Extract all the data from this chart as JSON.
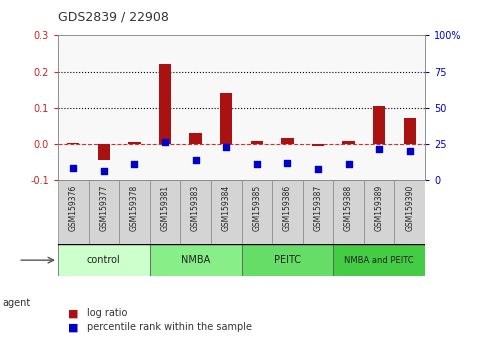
{
  "title": "GDS2839 / 22908",
  "categories": [
    "GSM159376",
    "GSM159377",
    "GSM159378",
    "GSM159381",
    "GSM159383",
    "GSM159384",
    "GSM159385",
    "GSM159386",
    "GSM159387",
    "GSM159388",
    "GSM159389",
    "GSM159390"
  ],
  "log_ratio": [
    0.003,
    -0.045,
    0.005,
    0.22,
    0.03,
    0.14,
    0.01,
    0.018,
    -0.005,
    0.01,
    0.105,
    0.073
  ],
  "percentile_rank": [
    8.5,
    6.3,
    11.0,
    26.5,
    14.3,
    23.3,
    11.0,
    12.0,
    8.0,
    11.5,
    22.0,
    20.0
  ],
  "groups": [
    {
      "label": "control",
      "start": 0,
      "end": 3
    },
    {
      "label": "NMBA",
      "start": 3,
      "end": 6
    },
    {
      "label": "PEITC",
      "start": 6,
      "end": 9
    },
    {
      "label": "NMBA and PEITC",
      "start": 9,
      "end": 12
    }
  ],
  "group_colors": [
    "#ccffcc",
    "#88ee88",
    "#66dd66",
    "#44cc44"
  ],
  "bar_color": "#aa1111",
  "dot_color": "#0000cc",
  "ylim_left": [
    -0.1,
    0.3
  ],
  "ylim_right": [
    0,
    100
  ],
  "yticks_left": [
    -0.1,
    0.0,
    0.1,
    0.2,
    0.3
  ],
  "yticks_right": [
    0,
    25,
    50,
    75,
    100
  ],
  "ytick_right_labels": [
    "0",
    "25",
    "50",
    "75",
    "100%"
  ],
  "ylabel_left_color": "#cc2222",
  "ylabel_right_color": "#0000cc",
  "hline_y": [
    0.1,
    0.2
  ],
  "zero_line_color": "#cc3333",
  "legend_items": [
    "log ratio",
    "percentile rank within the sample"
  ]
}
